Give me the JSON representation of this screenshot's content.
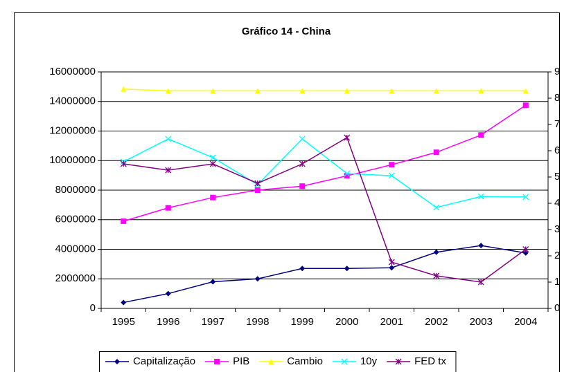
{
  "chart_data": {
    "type": "line",
    "title": "Gráfico 14 - China",
    "categories": [
      "1995",
      "1996",
      "1997",
      "1998",
      "1999",
      "2000",
      "2001",
      "2002",
      "2003",
      "2004"
    ],
    "ylim": [
      0,
      16000000
    ],
    "yticks": [
      0,
      2000000,
      4000000,
      6000000,
      8000000,
      10000000,
      12000000,
      14000000,
      16000000
    ],
    "y2lim": [
      0,
      9
    ],
    "y2ticks": [
      0,
      1,
      2,
      3,
      4,
      5,
      6,
      7,
      8,
      9
    ],
    "grid": true,
    "legend": "bottom",
    "series": [
      {
        "name": "Capitalização",
        "color": "#000080",
        "values": [
          400000,
          1000000,
          1800000,
          2000000,
          2700000,
          2700000,
          2750000,
          3800000,
          4250000,
          3750000
        ]
      },
      {
        "name": "PIB",
        "color": "#ff00ff",
        "values": [
          5900000,
          6800000,
          7500000,
          8000000,
          8270000,
          8970000,
          9720000,
          10560000,
          11730000,
          13740000
        ]
      },
      {
        "name": "Cambio",
        "color": "#ffff00",
        "axis": "y2",
        "values": [
          8.35,
          8.28,
          8.28,
          8.28,
          8.28,
          8.28,
          8.28,
          8.28,
          8.28,
          8.28
        ]
      },
      {
        "name": "10y",
        "color": "#00ffff",
        "axis": "y2",
        "values": [
          5.58,
          6.45,
          5.74,
          4.71,
          6.45,
          5.13,
          5.05,
          3.84,
          4.26,
          4.24
        ]
      },
      {
        "name": "FED tx",
        "color": "#800080",
        "axis": "y2",
        "values": [
          5.5,
          5.26,
          5.5,
          4.76,
          5.5,
          6.5,
          1.76,
          1.24,
          1.0,
          2.25
        ]
      }
    ]
  }
}
